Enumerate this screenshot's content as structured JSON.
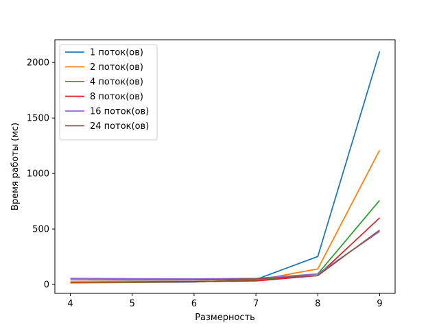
{
  "chart_data": {
    "type": "line",
    "xlabel": "Размерность",
    "ylabel": "Время работы (мс)",
    "x": [
      4,
      5,
      6,
      7,
      8,
      9
    ],
    "xticks": [
      4,
      5,
      6,
      7,
      8,
      9
    ],
    "yticks": [
      0,
      500,
      1000,
      1500,
      2000
    ],
    "xlim": [
      3.75,
      9.25
    ],
    "ylim": [
      -80,
      2205
    ],
    "grid": false,
    "legend_position": "top-left",
    "series": [
      {
        "name": "1 поток(ов)",
        "color": "#1f77b4",
        "values": [
          15,
          18,
          22,
          45,
          252,
          2100
        ]
      },
      {
        "name": "2 поток(ов)",
        "color": "#ff7f0e",
        "values": [
          18,
          20,
          25,
          38,
          140,
          1210
        ]
      },
      {
        "name": "4 поток(ов)",
        "color": "#2ca02c",
        "values": [
          20,
          22,
          26,
          36,
          95,
          758
        ]
      },
      {
        "name": "8 поток(ов)",
        "color": "#d62728",
        "values": [
          22,
          24,
          26,
          32,
          80,
          600
        ]
      },
      {
        "name": "16 поток(ов)",
        "color": "#9467bd",
        "values": [
          55,
          52,
          50,
          55,
          95,
          478
        ]
      },
      {
        "name": "24 поток(ов)",
        "color": "#8c564b",
        "values": [
          42,
          40,
          40,
          50,
          80,
          490
        ]
      }
    ]
  }
}
